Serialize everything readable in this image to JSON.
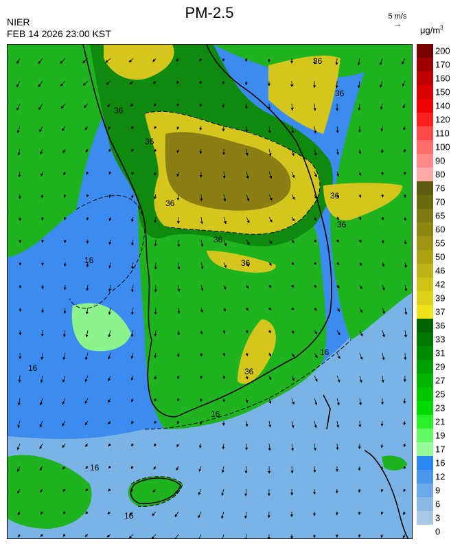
{
  "header": {
    "agency": "NIER",
    "datetime": "FEB 14 2026 23:00 KST",
    "title": "PM-2.5",
    "wind_reference": "5 m/s",
    "unit_base": "μg/m",
    "unit_exp": "3"
  },
  "legend": {
    "levels": [
      {
        "label": "200",
        "color": "#7a0000"
      },
      {
        "label": "170",
        "color": "#a00000"
      },
      {
        "label": "160",
        "color": "#c00000"
      },
      {
        "label": "150",
        "color": "#dc0000"
      },
      {
        "label": "140",
        "color": "#f00000"
      },
      {
        "label": "120",
        "color": "#ff2020"
      },
      {
        "label": "110",
        "color": "#ff4a4a"
      },
      {
        "label": "100",
        "color": "#ff6c6c"
      },
      {
        "label": "90",
        "color": "#ff8a8a"
      },
      {
        "label": "80",
        "color": "#ffa8a8"
      },
      {
        "label": "76",
        "color": "#5e5a10"
      },
      {
        "label": "70",
        "color": "#6e6a10"
      },
      {
        "label": "65",
        "color": "#7e7812"
      },
      {
        "label": "60",
        "color": "#8e8612"
      },
      {
        "label": "55",
        "color": "#9e9414"
      },
      {
        "label": "50",
        "color": "#aea214"
      },
      {
        "label": "46",
        "color": "#beb216"
      },
      {
        "label": "42",
        "color": "#cec216"
      },
      {
        "label": "39",
        "color": "#ded218"
      },
      {
        "label": "37",
        "color": "#eee218"
      },
      {
        "label": "36",
        "color": "#006400"
      },
      {
        "label": "33",
        "color": "#007800"
      },
      {
        "label": "31",
        "color": "#008c00"
      },
      {
        "label": "29",
        "color": "#00a000"
      },
      {
        "label": "27",
        "color": "#00b400"
      },
      {
        "label": "25",
        "color": "#00c800"
      },
      {
        "label": "23",
        "color": "#00dc00"
      },
      {
        "label": "21",
        "color": "#28f028"
      },
      {
        "label": "19",
        "color": "#64f864"
      },
      {
        "label": "17",
        "color": "#96fa96"
      },
      {
        "label": "16",
        "color": "#2a86f0"
      },
      {
        "label": "12",
        "color": "#4a96ec"
      },
      {
        "label": "9",
        "color": "#6aa8e8"
      },
      {
        "label": "6",
        "color": "#8ab8e4"
      },
      {
        "label": "3",
        "color": "#a6c8e4"
      },
      {
        "label": "0",
        "color": ""
      }
    ]
  },
  "contour_labels": [
    "36",
    "36",
    "36",
    "36",
    "36",
    "36",
    "36",
    "36",
    "36",
    "36",
    "16",
    "16",
    "16",
    "16",
    "16",
    "16"
  ],
  "colors": {
    "sea_low": "#7ab4e6",
    "sea_mid": "#3c8cf0",
    "land_green": "#1fb41f",
    "land_dark": "#0f8a0f",
    "yellow_band": "#d4c61c",
    "olive_core": "#8a7e14",
    "light_green": "#8cf28c"
  }
}
